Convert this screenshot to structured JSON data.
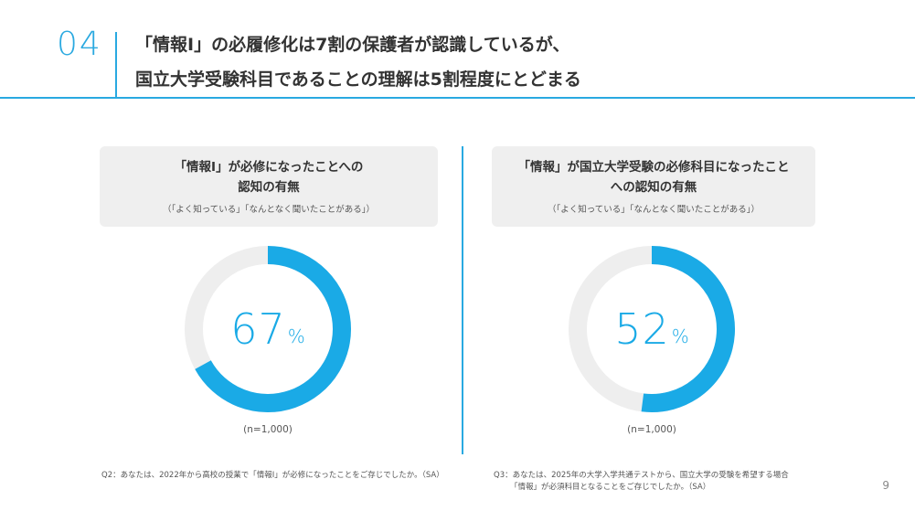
{
  "header": {
    "slide_number": "04",
    "title_line1": "「情報Ⅰ」の必履修化は7割の保護者が認識しているが、",
    "title_line2": "国立大学受験科目であることの理解は5割程度にとどまる"
  },
  "colors": {
    "accent": "#1aaae6",
    "track": "#eeeeee",
    "panel_bg": "#efefef"
  },
  "chart_data": [
    {
      "type": "pie",
      "title_line1": "「情報Ⅰ」が必修になったことへの",
      "title_line2": "認知の有無",
      "subtitle": "（「よく知っている」「なんとなく聞いたことがある」）",
      "value": 67,
      "unit": "%",
      "n_label": "(n=1,000)",
      "footnote_line1": "Q2：あなたは、2022年から高校の授業で「情報Ⅰ」が必修になったことをご存じでしたか。（SA）"
    },
    {
      "type": "pie",
      "title_line1": "「情報」が国立大学受験の必修科目になったこと",
      "title_line2": "への認知の有無",
      "subtitle": "（「よく知っている」「なんとなく聞いたことがある」）",
      "value": 52,
      "unit": "%",
      "n_label": "(n=1,000)",
      "footnote_line1": "Q3：あなたは、2025年の大学入学共通テストから、国立大学の受験を希望する場合",
      "footnote_line2": "「情報」が必須科目となることをご存じでしたか。（SA）"
    }
  ],
  "page_number": "9"
}
